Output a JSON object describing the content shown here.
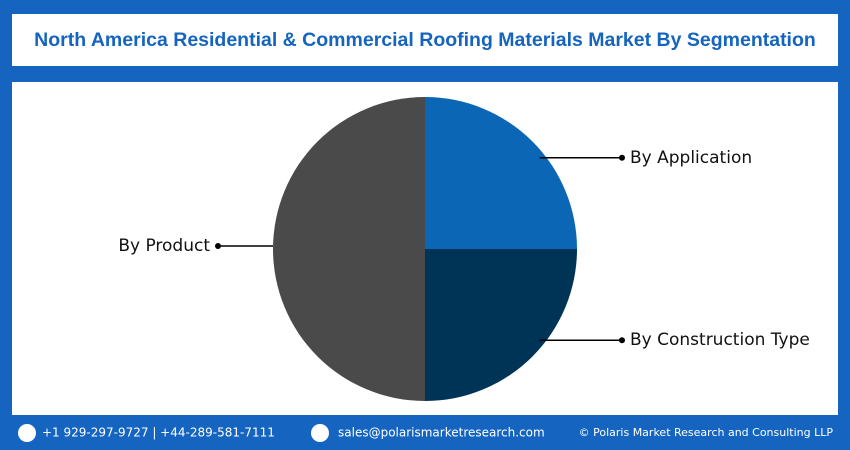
{
  "chart_data": {
    "type": "pie",
    "title": "North America Residential & Commercial Roofing Materials Market By Segmentation",
    "categories": [
      "By Application",
      "By Construction Type",
      "By Product"
    ],
    "values": [
      25,
      25,
      50
    ],
    "colors": [
      "#0b66b5",
      "#003456",
      "#4a4a4a"
    ]
  },
  "footer": {
    "phone": "+1 929-297-9727 | +44-289-581-7111",
    "email": "sales@polarismarketresearch.com",
    "copyright": "© Polaris Market Research and Consulting LLP"
  }
}
